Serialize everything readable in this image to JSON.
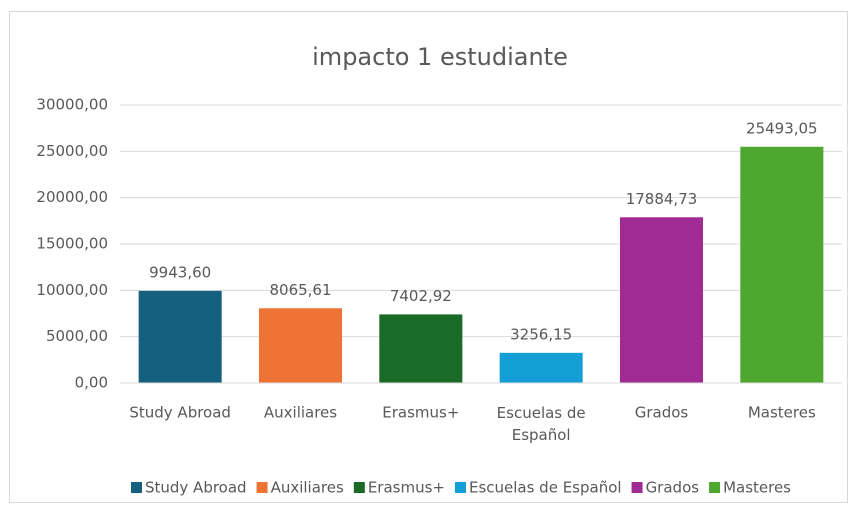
{
  "chart_data": {
    "type": "bar",
    "title": "impacto 1 estudiante",
    "categories": [
      "Study Abroad",
      "Auxiliares",
      "Erasmus+",
      "Escuelas de Español",
      "Grados",
      "Masteres"
    ],
    "values": [
      9943.6,
      8065.61,
      7402.92,
      3256.15,
      17884.73,
      25493.05
    ],
    "value_labels": [
      "9943,60",
      "8065,61",
      "7402,92",
      "3256,15",
      "17884,73",
      "25493,05"
    ],
    "colors": [
      "#15607f",
      "#ed7434",
      "#1a6b27",
      "#139fd6",
      "#a02b93",
      "#4ea72e"
    ],
    "ylim": [
      0,
      30000
    ],
    "yticks": [
      {
        "value": 0,
        "label": "0,00"
      },
      {
        "value": 5000,
        "label": "5000,00"
      },
      {
        "value": 10000,
        "label": "10000,00"
      },
      {
        "value": 15000,
        "label": "15000,00"
      },
      {
        "value": 20000,
        "label": "20000,00"
      },
      {
        "value": 25000,
        "label": "25000,00"
      },
      {
        "value": 30000,
        "label": "30000,00"
      }
    ],
    "grid": true,
    "legend": "bottom"
  }
}
